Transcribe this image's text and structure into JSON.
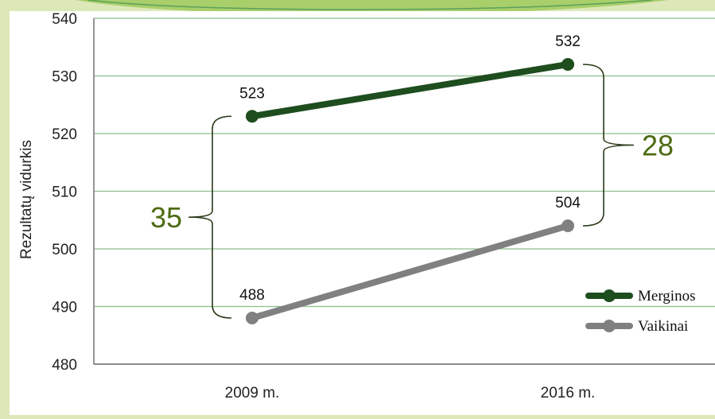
{
  "chart_data": {
    "type": "line",
    "x": [
      "2009 m.",
      "2016 m."
    ],
    "ylabel": "Rezultatų vidurkis",
    "ylim": [
      480,
      540
    ],
    "yticks": [
      480,
      490,
      500,
      510,
      520,
      530,
      540
    ],
    "grid": true,
    "legend_position": "bottom-right",
    "series": [
      {
        "name": "Merginos",
        "values": [
          523,
          532
        ],
        "labels": [
          "523",
          "532"
        ],
        "color": "#1e4d1e"
      },
      {
        "name": "Vaikinai",
        "values": [
          488,
          504
        ],
        "labels": [
          "488",
          "504"
        ],
        "color": "#808080"
      }
    ],
    "annotations": [
      {
        "text": "35",
        "category": "2009 m.",
        "from": 488,
        "to": 523,
        "color": "#4e6b12"
      },
      {
        "text": "28",
        "category": "2016 m.",
        "from": 504,
        "to": 532,
        "color": "#4e6b12"
      }
    ]
  }
}
